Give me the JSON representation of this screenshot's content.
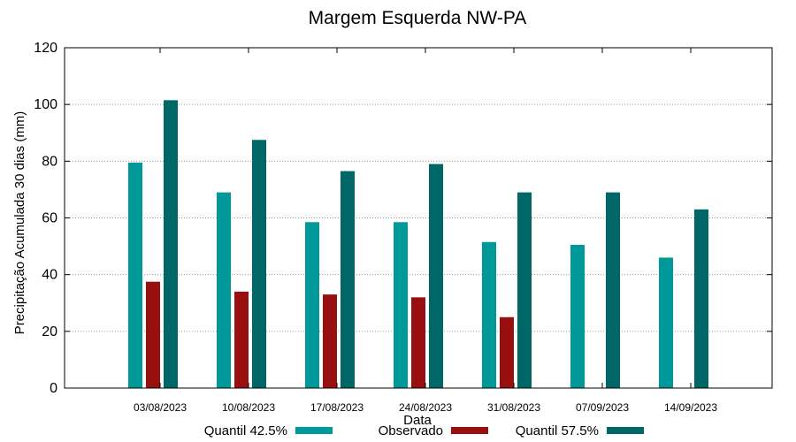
{
  "chart_data": {
    "type": "bar",
    "title": "Margem Esquerda NW-PA",
    "xlabel": "Data",
    "ylabel": "Precipitação Acumulada 30 dias (mm)",
    "ylim": [
      0,
      120
    ],
    "yticks": [
      0,
      20,
      40,
      60,
      80,
      100,
      120
    ],
    "grid": "y-dotted",
    "legend_position": "bottom",
    "categories": [
      "03/08/2023",
      "10/08/2023",
      "17/08/2023",
      "24/08/2023",
      "31/08/2023",
      "07/09/2023",
      "14/09/2023"
    ],
    "series": [
      {
        "name": "Quantil 42.5%",
        "color": "#009999",
        "values": [
          79.5,
          69,
          58.5,
          58.5,
          51.5,
          50.5,
          46
        ]
      },
      {
        "name": "Observado",
        "color": "#990f0f",
        "values": [
          37.5,
          34,
          33,
          32,
          25,
          null,
          null
        ]
      },
      {
        "name": "Quantil 57.5%",
        "color": "#006666",
        "values": [
          101.5,
          87.5,
          76.5,
          79,
          69,
          69,
          63
        ]
      }
    ]
  }
}
